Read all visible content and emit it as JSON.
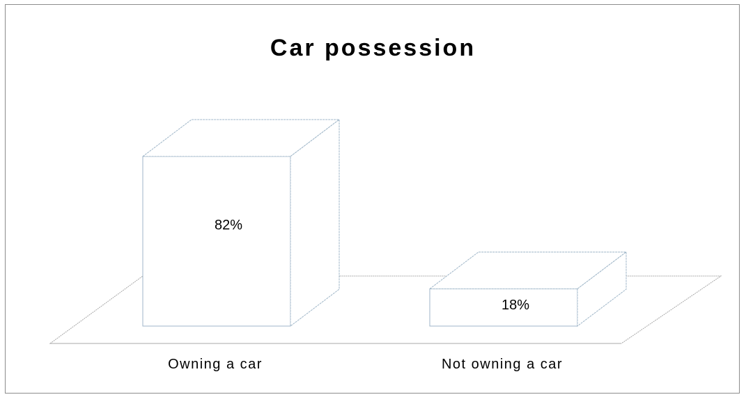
{
  "chart_data": {
    "type": "bar",
    "title": "Car possession",
    "categories": [
      "Owning a car",
      "Not owning a car"
    ],
    "values": [
      82,
      18
    ],
    "data_labels": [
      "82%",
      "18%"
    ],
    "ylim": [
      0,
      100
    ],
    "grid": false,
    "legend": "none",
    "style": "3d-outline",
    "colors": {
      "bar_fill": "#ffffff",
      "bar_stroke": "#9fb6c8",
      "floor_stroke": "#a8a8a8",
      "text": "#000000"
    }
  }
}
